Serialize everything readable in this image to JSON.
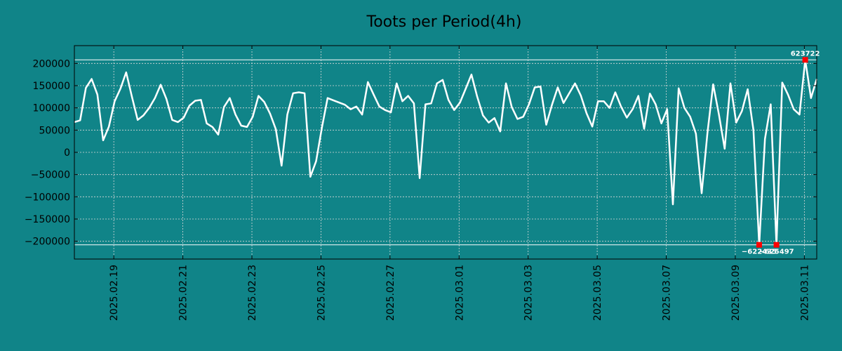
{
  "chart_data": {
    "type": "line",
    "title": "Toots per Period(4h)",
    "xlabel": "",
    "ylabel": "",
    "ylim": [
      -240000,
      240000
    ],
    "grid": true,
    "colors": {
      "background": "#108488",
      "line": "#ffffff",
      "grid": "#d9d9d9",
      "marker": "#ff0000"
    },
    "y_ticks": [
      200000,
      150000,
      100000,
      50000,
      0,
      -50000,
      -100000,
      -150000,
      -200000
    ],
    "y_tick_labels": [
      "200000",
      "150000",
      "100000",
      "50000",
      "0",
      "−50000",
      "−100000",
      "−150000",
      "−200000"
    ],
    "x_ticks": [
      6.85,
      18.85,
      30.85,
      42.85,
      54.85,
      66.85,
      78.85,
      90.85,
      102.85,
      114.85,
      126.85
    ],
    "x_tick_labels": [
      "2025.02.19",
      "2025.02.21",
      "2025.02.23",
      "2025.02.25",
      "2025.02.27",
      "2025.03.01",
      "2025.03.03",
      "2025.03.05",
      "2025.03.07",
      "2025.03.09",
      "2025.03.11"
    ],
    "x_range": [
      0,
      129
    ],
    "hlines": [
      208000,
      -208000
    ],
    "series": [
      {
        "name": "toots",
        "values": [
          68000,
          72000,
          145000,
          165000,
          130000,
          27000,
          58000,
          115000,
          143000,
          180000,
          125000,
          73000,
          83000,
          100000,
          122000,
          152000,
          120000,
          73000,
          68000,
          78000,
          105000,
          116000,
          118000,
          65000,
          57000,
          40000,
          102000,
          122000,
          85000,
          60000,
          57000,
          80000,
          127000,
          113000,
          87000,
          52000,
          -30000,
          85000,
          133000,
          135000,
          133000,
          -55000,
          -20000,
          55000,
          122000,
          117000,
          112000,
          107000,
          97000,
          103000,
          85000,
          158000,
          130000,
          103000,
          95000,
          90000,
          155000,
          115000,
          127000,
          110000,
          -58000,
          108000,
          110000,
          155000,
          163000,
          118000,
          95000,
          112000,
          143000,
          175000,
          125000,
          83000,
          67000,
          77000,
          47000,
          155000,
          102000,
          75000,
          80000,
          108000,
          146000,
          148000,
          62000,
          107000,
          146000,
          111000,
          133000,
          155000,
          128000,
          88000,
          58000,
          115000,
          115000,
          100000,
          135000,
          103000,
          78000,
          97000,
          127000,
          53000,
          132000,
          108000,
          65000,
          97000,
          -117000,
          144000,
          100000,
          80000,
          42000,
          -92000,
          43000,
          153000,
          85000,
          8000,
          155000,
          67000,
          93000,
          142000,
          50000,
          -208000,
          30000,
          108000,
          -208000,
          157000,
          130000,
          97000,
          85000,
          208000,
          122000,
          165000
        ]
      }
    ],
    "annotations": [
      {
        "index": 127,
        "value": 208000,
        "label": "623722",
        "position": "above"
      },
      {
        "index": 119,
        "value": -208000,
        "label": "−622435",
        "position": "below"
      },
      {
        "index": 122,
        "value": -208000,
        "label": "−625497",
        "position": "below"
      }
    ]
  }
}
